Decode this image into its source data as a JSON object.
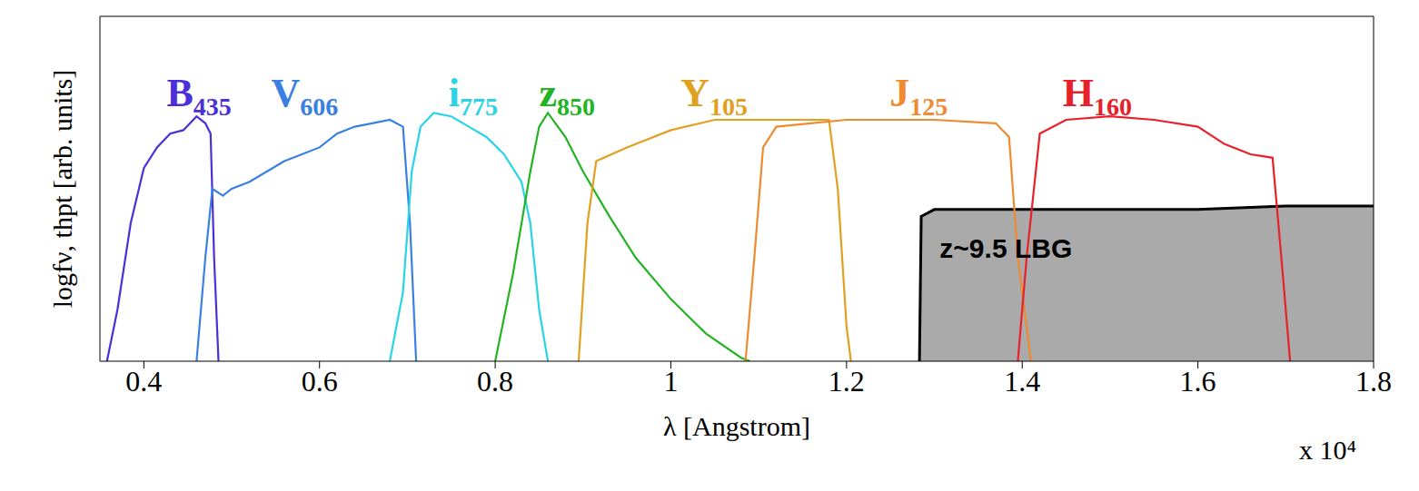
{
  "chart_data": {
    "type": "line",
    "x_label": "λ [Angstrom]",
    "y_label": "logfν, thpt [arb. units]",
    "annotations": [
      "x 10⁴"
    ],
    "xlim": [
      0.35,
      1.8
    ],
    "xticks": [
      0.4,
      0.6,
      0.8,
      1,
      1.2,
      1.4,
      1.6,
      1.8
    ],
    "ylim": [
      0,
      1
    ],
    "tick_labels": "x",
    "grid": false,
    "series": [
      {
        "name": "B435",
        "color": "#4b2fd8",
        "type": "line",
        "x": [
          0.358,
          0.37,
          0.385,
          0.4,
          0.415,
          0.43,
          0.445,
          0.46,
          0.47,
          0.476,
          0.48,
          0.485
        ],
        "values": [
          0,
          0.15,
          0.4,
          0.56,
          0.62,
          0.66,
          0.67,
          0.71,
          0.69,
          0.66,
          0.3,
          0
        ]
      },
      {
        "name": "V606",
        "color": "#3a80e2",
        "type": "line",
        "x": [
          0.46,
          0.47,
          0.478,
          0.49,
          0.5,
          0.52,
          0.54,
          0.56,
          0.58,
          0.6,
          0.62,
          0.64,
          0.66,
          0.68,
          0.695,
          0.703,
          0.71
        ],
        "values": [
          0,
          0.3,
          0.5,
          0.48,
          0.5,
          0.52,
          0.55,
          0.58,
          0.6,
          0.62,
          0.66,
          0.68,
          0.69,
          0.7,
          0.68,
          0.4,
          0
        ]
      },
      {
        "name": "i775",
        "color": "#29d4e6",
        "type": "line",
        "x": [
          0.68,
          0.695,
          0.705,
          0.715,
          0.73,
          0.75,
          0.77,
          0.79,
          0.81,
          0.83,
          0.84,
          0.85,
          0.86
        ],
        "values": [
          0,
          0.2,
          0.55,
          0.68,
          0.72,
          0.71,
          0.68,
          0.65,
          0.6,
          0.52,
          0.4,
          0.15,
          0
        ]
      },
      {
        "name": "z850",
        "color": "#22b422",
        "type": "line",
        "x": [
          0.8,
          0.82,
          0.84,
          0.85,
          0.86,
          0.88,
          0.9,
          0.93,
          0.96,
          1.0,
          1.04,
          1.08,
          1.09
        ],
        "values": [
          0,
          0.25,
          0.55,
          0.68,
          0.72,
          0.65,
          0.55,
          0.42,
          0.3,
          0.18,
          0.08,
          0.01,
          0
        ]
      },
      {
        "name": "Y105",
        "color": "#e0a020",
        "type": "line",
        "x": [
          0.895,
          0.905,
          0.915,
          0.95,
          1.0,
          1.05,
          1.1,
          1.15,
          1.18,
          1.19,
          1.2,
          1.205
        ],
        "values": [
          0,
          0.4,
          0.58,
          0.62,
          0.67,
          0.7,
          0.7,
          0.7,
          0.7,
          0.5,
          0.1,
          0
        ]
      },
      {
        "name": "J125",
        "color": "#f08a30",
        "type": "line",
        "x": [
          1.085,
          1.095,
          1.105,
          1.12,
          1.2,
          1.3,
          1.37,
          1.385,
          1.395,
          1.41
        ],
        "values": [
          0,
          0.3,
          0.62,
          0.68,
          0.7,
          0.7,
          0.69,
          0.65,
          0.3,
          0
        ]
      },
      {
        "name": "H160",
        "color": "#e8202a",
        "type": "line",
        "x": [
          1.395,
          1.405,
          1.42,
          1.45,
          1.5,
          1.55,
          1.6,
          1.63,
          1.66,
          1.685,
          1.695,
          1.705
        ],
        "values": [
          0,
          0.3,
          0.66,
          0.7,
          0.71,
          0.7,
          0.68,
          0.63,
          0.6,
          0.59,
          0.3,
          0
        ]
      },
      {
        "name": "z~9.5 LBG",
        "color": "#aaaaaa",
        "type": "area",
        "x": [
          1.283,
          1.285,
          1.3,
          1.4,
          1.5,
          1.6,
          1.7,
          1.8
        ],
        "values": [
          0,
          0.42,
          0.44,
          0.44,
          0.44,
          0.44,
          0.45,
          0.45
        ]
      }
    ]
  }
}
